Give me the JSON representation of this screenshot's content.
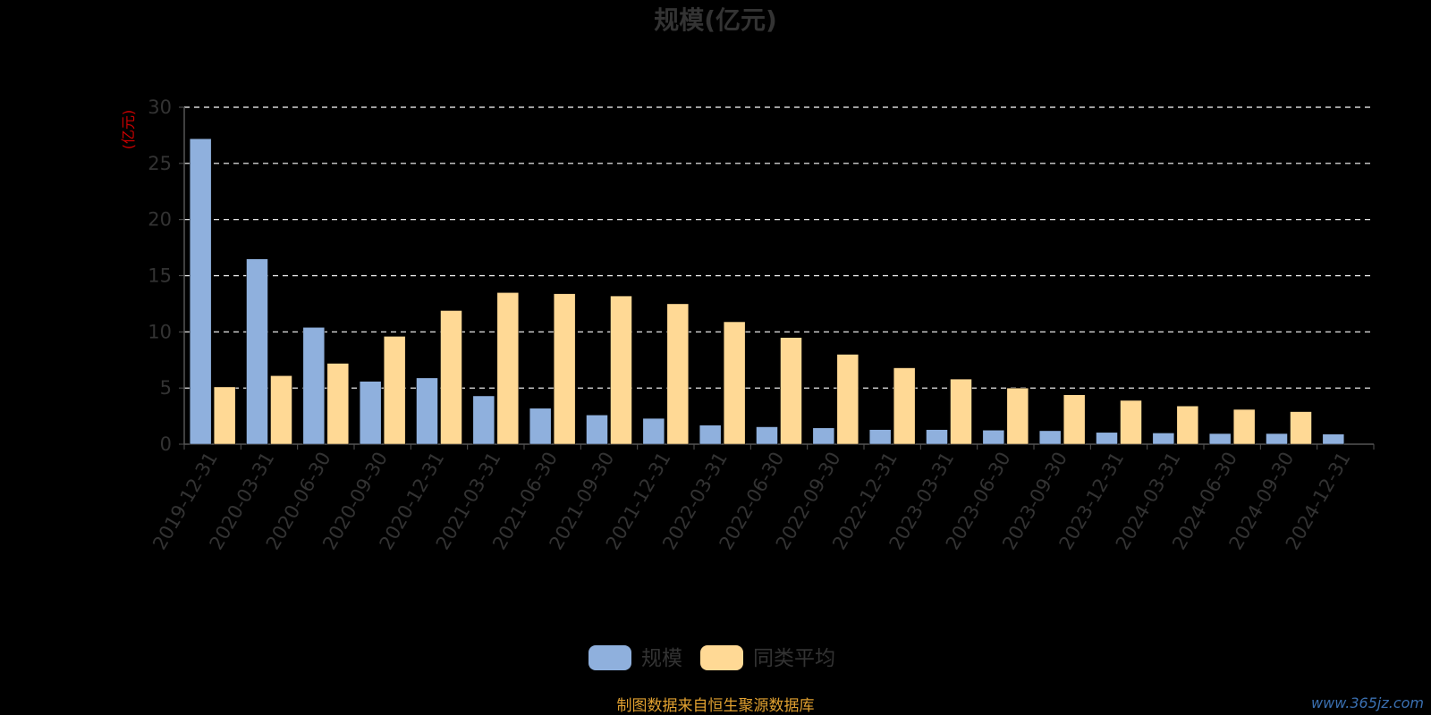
{
  "chart_data": {
    "type": "bar",
    "title": "规模(亿元)",
    "ylabel": "(亿元)",
    "xlabel": "",
    "ylim": [
      0,
      30
    ],
    "yticks": [
      0,
      5,
      10,
      15,
      20,
      25,
      30
    ],
    "grid": true,
    "legend_position": "bottom-center",
    "categories": [
      "2019-12-31",
      "2020-03-31",
      "2020-06-30",
      "2020-09-30",
      "2020-12-31",
      "2021-03-31",
      "2021-06-30",
      "2021-09-30",
      "2021-12-31",
      "2022-03-31",
      "2022-06-30",
      "2022-09-30",
      "2022-12-31",
      "2023-03-31",
      "2023-06-30",
      "2023-09-30",
      "2023-12-31",
      "2024-03-31",
      "2024-06-30",
      "2024-09-30",
      "2024-12-31"
    ],
    "series": [
      {
        "name": "规模",
        "color": "#8FB0DD",
        "values": [
          27.2,
          16.5,
          10.4,
          5.6,
          5.9,
          4.3,
          3.2,
          2.6,
          2.3,
          1.7,
          1.55,
          1.45,
          1.3,
          1.3,
          1.25,
          1.2,
          1.05,
          1.0,
          0.95,
          0.95,
          0.9
        ]
      },
      {
        "name": "同类平均",
        "color": "#FFD995",
        "values": [
          5.1,
          6.1,
          7.2,
          9.6,
          11.9,
          13.5,
          13.4,
          13.2,
          12.5,
          10.9,
          9.5,
          8.0,
          6.8,
          5.8,
          5.0,
          4.4,
          3.9,
          3.4,
          3.1,
          2.9,
          null
        ]
      }
    ]
  },
  "footer": {
    "source_text": "制图数据来自恒生聚源数据库",
    "watermark": "www.365jz.com"
  },
  "colors": {
    "background": "#000000",
    "title": "#333333",
    "axis_text": "#333333",
    "ylabel": "#CC0000",
    "grid": "#FFFFFF",
    "axis_line": "#555555",
    "source_text": "#E0A030",
    "watermark": "#3a6fb0"
  }
}
